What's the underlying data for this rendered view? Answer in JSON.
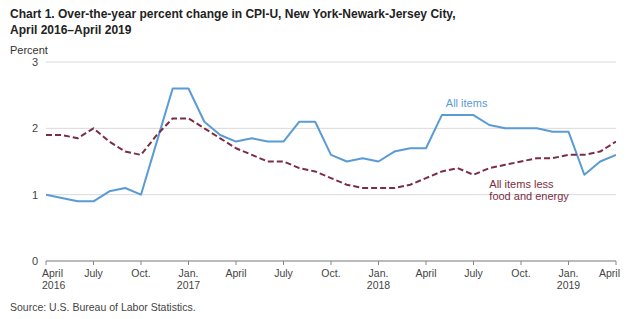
{
  "chart_data": {
    "type": "line",
    "title": "Chart 1. Over-the-year percent change in CPI-U, New York-Newark-Jersey City,",
    "subtitle": "April 2016–April 2019",
    "ylabel": "Percent",
    "source": "Source: U.S. Bureau of Labor Statistics.",
    "categories": [
      "April\n2016",
      null,
      null,
      "July",
      null,
      null,
      "Oct.",
      null,
      null,
      "Jan.\n2017",
      null,
      null,
      "April",
      null,
      null,
      "July",
      null,
      null,
      "Oct.",
      null,
      null,
      "Jan.\n2018",
      null,
      null,
      "April",
      null,
      null,
      "July",
      null,
      null,
      "Oct.",
      null,
      null,
      "Jan.\n2019",
      null,
      null,
      "April"
    ],
    "series": [
      {
        "name": "All items",
        "color": "#5b9bd5",
        "line_style": "solid",
        "values": [
          1.0,
          0.95,
          0.9,
          0.9,
          1.05,
          1.1,
          1.0,
          1.8,
          2.6,
          2.6,
          2.1,
          1.9,
          1.8,
          1.85,
          1.8,
          1.8,
          2.1,
          2.1,
          1.6,
          1.5,
          1.55,
          1.5,
          1.65,
          1.7,
          1.7,
          2.2,
          2.2,
          2.2,
          2.05,
          2.0,
          2.0,
          2.0,
          1.95,
          1.95,
          1.3,
          1.5,
          1.6
        ]
      },
      {
        "name": "All items less\nfood and energy",
        "color": "#7b2d42",
        "line_style": "dashed",
        "values": [
          1.9,
          1.9,
          1.85,
          2.0,
          1.8,
          1.65,
          1.6,
          1.9,
          2.15,
          2.15,
          2.0,
          1.85,
          1.7,
          1.6,
          1.5,
          1.5,
          1.4,
          1.35,
          1.25,
          1.15,
          1.1,
          1.1,
          1.1,
          1.15,
          1.25,
          1.35,
          1.4,
          1.3,
          1.4,
          1.45,
          1.5,
          1.55,
          1.55,
          1.6,
          1.6,
          1.65,
          1.8
        ]
      }
    ],
    "ylim": [
      0,
      3
    ],
    "yticks": [
      0,
      1,
      2,
      3
    ],
    "grid": true
  }
}
